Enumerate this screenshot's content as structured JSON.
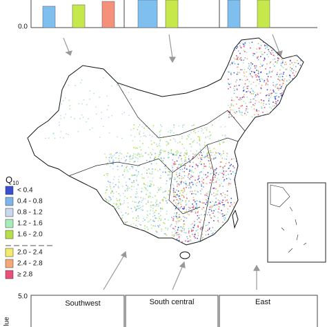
{
  "top_axis": {
    "tick": "0.0"
  },
  "legend": {
    "title": "Q",
    "title_sub": "10",
    "items": [
      {
        "label": "< 0.4",
        "color": "#3a4fd0"
      },
      {
        "label": "0.4 - 0.8",
        "color": "#7fb4ea"
      },
      {
        "label": "0.8 - 1.2",
        "color": "#c8d8f0"
      },
      {
        "label": "1.2 - 1.6",
        "color": "#a6ecb8"
      },
      {
        "label": "1.6 - 2.0",
        "color": "#b6e04a"
      },
      {
        "label": "2.0 - 2.4",
        "color": "#f5ea6a"
      },
      {
        "label": "2.4 - 2.8",
        "color": "#f5a878"
      },
      {
        "label": "≥ 2.8",
        "color": "#e8507a"
      }
    ]
  },
  "bottom_axis": {
    "tick": "5.0",
    "label": "lue"
  },
  "regions": [
    "Southwest",
    "South central",
    "East"
  ]
}
